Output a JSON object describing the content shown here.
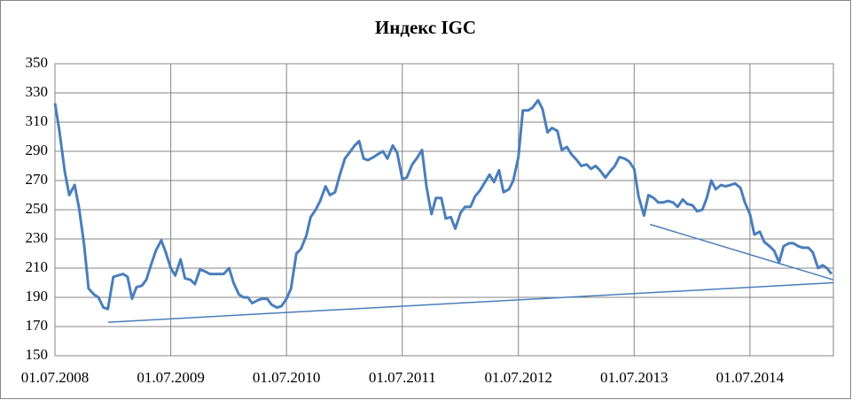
{
  "chart_data": {
    "type": "line",
    "title": "Индекс IGC",
    "x": [
      "2008-07-01",
      "2008-07-15",
      "2008-08-01",
      "2008-08-15",
      "2008-09-01",
      "2008-09-15",
      "2008-10-01",
      "2008-10-15",
      "2008-11-01",
      "2008-11-15",
      "2008-12-01",
      "2008-12-15",
      "2009-01-01",
      "2009-01-15",
      "2009-02-01",
      "2009-02-15",
      "2009-03-01",
      "2009-03-15",
      "2009-04-01",
      "2009-04-15",
      "2009-05-01",
      "2009-05-15",
      "2009-06-01",
      "2009-06-15",
      "2009-07-01",
      "2009-07-15",
      "2009-08-01",
      "2009-08-15",
      "2009-09-01",
      "2009-09-15",
      "2009-10-01",
      "2009-10-15",
      "2009-11-01",
      "2009-11-15",
      "2009-12-01",
      "2009-12-15",
      "2010-01-01",
      "2010-01-15",
      "2010-02-01",
      "2010-02-15",
      "2010-03-01",
      "2010-03-15",
      "2010-04-01",
      "2010-04-15",
      "2010-05-01",
      "2010-05-15",
      "2010-06-01",
      "2010-06-15",
      "2010-07-01",
      "2010-07-15",
      "2010-08-01",
      "2010-08-15",
      "2010-09-01",
      "2010-09-15",
      "2010-10-01",
      "2010-10-15",
      "2010-11-01",
      "2010-11-15",
      "2010-12-01",
      "2010-12-15",
      "2011-01-01",
      "2011-01-15",
      "2011-02-01",
      "2011-02-15",
      "2011-03-01",
      "2011-03-15",
      "2011-04-01",
      "2011-04-15",
      "2011-05-01",
      "2011-05-15",
      "2011-06-01",
      "2011-06-15",
      "2011-07-01",
      "2011-07-15",
      "2011-08-01",
      "2011-08-15",
      "2011-09-01",
      "2011-09-15",
      "2011-10-01",
      "2011-10-15",
      "2011-11-01",
      "2011-11-15",
      "2011-12-01",
      "2011-12-15",
      "2012-01-01",
      "2012-01-15",
      "2012-02-01",
      "2012-02-15",
      "2012-03-01",
      "2012-03-15",
      "2012-04-01",
      "2012-04-15",
      "2012-05-01",
      "2012-05-15",
      "2012-06-01",
      "2012-06-15",
      "2012-07-01",
      "2012-07-15",
      "2012-08-01",
      "2012-08-15",
      "2012-09-01",
      "2012-09-15",
      "2012-10-01",
      "2012-10-15",
      "2012-11-01",
      "2012-11-15",
      "2012-12-01",
      "2012-12-15",
      "2013-01-01",
      "2013-01-15",
      "2013-02-01",
      "2013-02-15",
      "2013-03-01",
      "2013-03-15",
      "2013-04-01",
      "2013-04-15",
      "2013-05-01",
      "2013-05-15",
      "2013-06-01",
      "2013-06-15",
      "2013-07-01",
      "2013-07-15",
      "2013-08-01",
      "2013-08-15",
      "2013-09-01",
      "2013-09-15",
      "2013-10-01",
      "2013-10-15",
      "2013-11-01",
      "2013-11-15",
      "2013-12-01",
      "2013-12-15",
      "2014-01-01",
      "2014-01-15",
      "2014-02-01",
      "2014-02-15",
      "2014-03-01",
      "2014-03-15",
      "2014-04-01",
      "2014-04-15",
      "2014-05-01",
      "2014-05-15",
      "2014-06-01",
      "2014-06-15",
      "2014-07-01",
      "2014-07-15",
      "2014-08-01",
      "2014-08-15",
      "2014-09-01",
      "2014-09-15",
      "2014-10-01",
      "2014-10-15",
      "2014-11-01",
      "2014-11-15",
      "2014-12-01",
      "2014-12-15",
      "2015-01-01",
      "2015-01-15",
      "2015-02-01",
      "2015-02-15",
      "2015-03-01",
      "2015-03-15"
    ],
    "series": [
      {
        "color": "#4a7ebb",
        "values": [
          323,
          304,
          276,
          260,
          267,
          251,
          226,
          196,
          192,
          190,
          183,
          182,
          204,
          205,
          206,
          204,
          189,
          197,
          198,
          202,
          213,
          222,
          229,
          221,
          210,
          205,
          216,
          203,
          202,
          199,
          209,
          208,
          206,
          206,
          206,
          206,
          210,
          200,
          192,
          190,
          190,
          186,
          188,
          189,
          189,
          185,
          183,
          184,
          189,
          196,
          220,
          223,
          232,
          245,
          250,
          256,
          266,
          260,
          262,
          273,
          285,
          289,
          294,
          297,
          285,
          284,
          286,
          288,
          290,
          285,
          294,
          289,
          271,
          272,
          281,
          285,
          291,
          266,
          247,
          258,
          258,
          244,
          245,
          237,
          248,
          252,
          252,
          259,
          263,
          268,
          274,
          269,
          277,
          262,
          264,
          270,
          286,
          318,
          318,
          320,
          325,
          319,
          303,
          306,
          304,
          291,
          293,
          288,
          284,
          280,
          281,
          278,
          280,
          277,
          272,
          276,
          280,
          286,
          285,
          283,
          278,
          259,
          246,
          260,
          258,
          255,
          255,
          256,
          255,
          252,
          257,
          254,
          253,
          249,
          250,
          258,
          270,
          264,
          267,
          266,
          267,
          268,
          265,
          255,
          247,
          233,
          235,
          228,
          225,
          222,
          214,
          225,
          227,
          227,
          225,
          224,
          224,
          221,
          210,
          212,
          210,
          206
        ]
      },
      {
        "color": "#4a7ebb",
        "x": [
          "2008-12-16",
          "2015-03-21"
        ],
        "values": [
          173,
          200
        ]
      },
      {
        "color": "#4a7ebb",
        "x": [
          "2013-08-20",
          "2015-03-21"
        ],
        "values": [
          240,
          202
        ]
      }
    ],
    "xlim": [
      "2008-07-01",
      "2015-03-21"
    ],
    "xticks": [
      {
        "value": "2008-07-01",
        "label": "01.07.2008"
      },
      {
        "value": "2009-07-01",
        "label": "01.07.2009"
      },
      {
        "value": "2010-07-01",
        "label": "01.07.2010"
      },
      {
        "value": "2011-07-01",
        "label": "01.07.2011"
      },
      {
        "value": "2012-07-01",
        "label": "01.07.2012"
      },
      {
        "value": "2013-07-01",
        "label": "01.07.2013"
      },
      {
        "value": "2014-07-01",
        "label": "01.07.2014"
      }
    ],
    "ylim": [
      150,
      350
    ],
    "yticks": [
      150,
      170,
      190,
      210,
      230,
      250,
      270,
      290,
      310,
      330,
      350
    ],
    "grid": true
  }
}
